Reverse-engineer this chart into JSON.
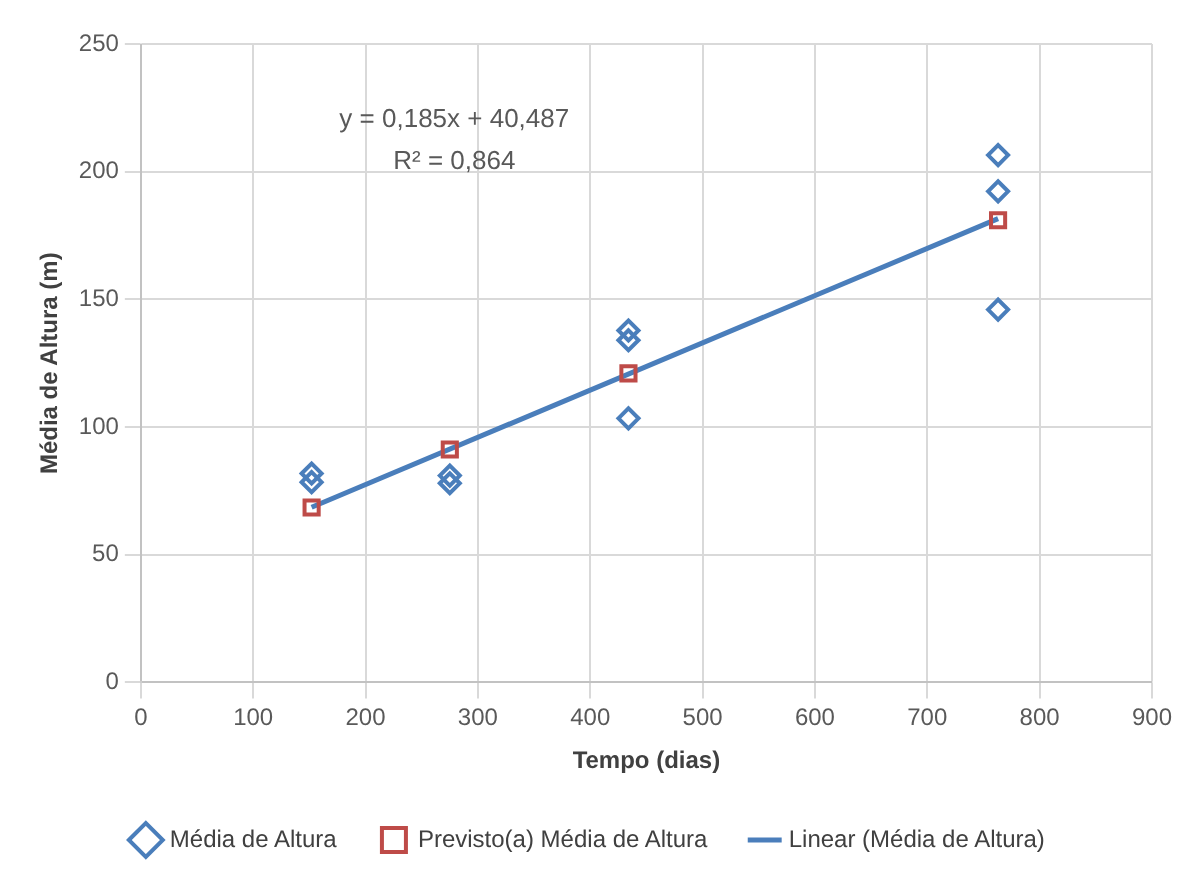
{
  "chart_data": {
    "type": "scatter",
    "xlabel": "Tempo (dias)",
    "ylabel": "Média de Altura (m)",
    "xlim": [
      0,
      900
    ],
    "xticks": [
      0,
      100,
      200,
      300,
      400,
      500,
      600,
      700,
      800,
      900
    ],
    "ylim": [
      0,
      250
    ],
    "yticks": [
      0,
      50,
      100,
      150,
      200,
      250
    ],
    "grid": true,
    "legend": "bottom",
    "annotations": [
      "y = 0,185x + 40,487",
      "R² = 0,864"
    ],
    "series": [
      {
        "name": "Média de Altura",
        "type": "scatter",
        "marker": "diamond",
        "color": "#4a7ebb",
        "x": [
          152,
          152,
          275,
          275,
          434,
          434,
          434,
          763,
          763,
          763
        ],
        "values": [
          81.8,
          78.4,
          81,
          78,
          137.8,
          134,
          103.4,
          206.5,
          192.3,
          146
        ]
      },
      {
        "name": "Previsto(a) Média de Altura",
        "type": "scatter",
        "marker": "square",
        "color": "#be4b48",
        "x": [
          152,
          275,
          434,
          763
        ],
        "values": [
          68.5,
          91.2,
          121,
          181
        ]
      },
      {
        "name": "Linear (Média de Altura)",
        "type": "line",
        "marker": "none",
        "color": "#4a7ebb",
        "x": [
          152,
          763
        ],
        "values": [
          68.6,
          181.6
        ]
      }
    ]
  }
}
